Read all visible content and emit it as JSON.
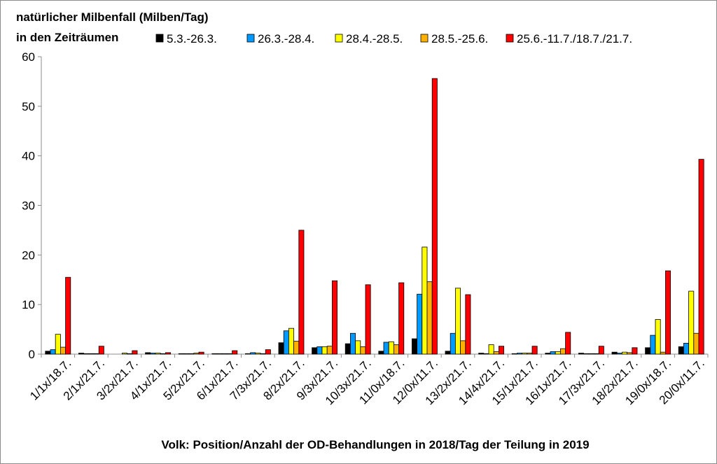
{
  "chart_data": {
    "type": "bar",
    "title_lines": [
      "natürlicher Milbenfall (Milben/Tag)",
      "in den Zeiträumen"
    ],
    "xlabel": "Volk: Position/Anzahl der OD-Behandlungen in 2018/Tag der Teilung in 2019",
    "ylabel": "",
    "ylim": [
      0,
      60
    ],
    "yticks": [
      0,
      10,
      20,
      30,
      40,
      50,
      60
    ],
    "grid": false,
    "legend_position": "top",
    "categories": [
      "1/1x/18.7.",
      "2/1x/21.7.",
      "3/2x/21.7.",
      "4/1x/21.7.",
      "5/2x/21.7.",
      "6/1x/21.7.",
      "7/3x/21.7.",
      "8/2x/21.7.",
      "9/3x/21.7.",
      "10/3x/21.7.",
      "11/0x/18.7.",
      "12/0x/11.7.",
      "13/2x/21.7.",
      "14/4x/21.7.",
      "15/1x/21.7.",
      "16/1x/21.7.",
      "17/3x/21.7.",
      "18/2x/21.7.",
      "19/0x/18.7.",
      "20/0x/11.7."
    ],
    "series": [
      {
        "name": "5.3.-26.3.",
        "color": "#000000",
        "values": [
          0.6,
          0.2,
          0.0,
          0.3,
          0.1,
          0.1,
          0.1,
          2.3,
          1.3,
          2.1,
          0.6,
          3.1,
          0.6,
          0.2,
          0.1,
          0.2,
          0.2,
          0.4,
          1.3,
          1.5
        ]
      },
      {
        "name": "26.3.-28.4.",
        "color": "#0099ff",
        "values": [
          0.9,
          0.1,
          0.0,
          0.2,
          0.1,
          0.1,
          0.3,
          4.7,
          1.5,
          4.2,
          2.4,
          12.1,
          4.2,
          0.1,
          0.2,
          0.5,
          0.1,
          0.2,
          3.8,
          2.2
        ]
      },
      {
        "name": "28.4.-28.5.",
        "color": "#ffff00",
        "values": [
          4.0,
          0.1,
          0.2,
          0.2,
          0.1,
          0.1,
          0.2,
          5.2,
          1.5,
          2.7,
          2.5,
          21.6,
          13.3,
          1.9,
          0.2,
          0.5,
          0.1,
          0.4,
          7.0,
          12.7
        ]
      },
      {
        "name": "28.5.-25.6.",
        "color": "#ffb000",
        "values": [
          1.4,
          0.1,
          0.1,
          0.1,
          0.2,
          0.1,
          0.1,
          2.6,
          1.6,
          1.5,
          1.9,
          14.6,
          2.7,
          0.5,
          0.2,
          1.1,
          0.1,
          0.3,
          0.4,
          4.2
        ]
      },
      {
        "name": "25.6.-11.7./18.7./21.7.",
        "color": "#ff0000",
        "values": [
          15.5,
          1.6,
          0.7,
          0.3,
          0.4,
          0.7,
          0.9,
          25.0,
          14.8,
          14.0,
          14.4,
          55.6,
          12.0,
          1.6,
          1.6,
          4.4,
          1.6,
          1.3,
          16.8,
          39.3
        ]
      }
    ]
  }
}
